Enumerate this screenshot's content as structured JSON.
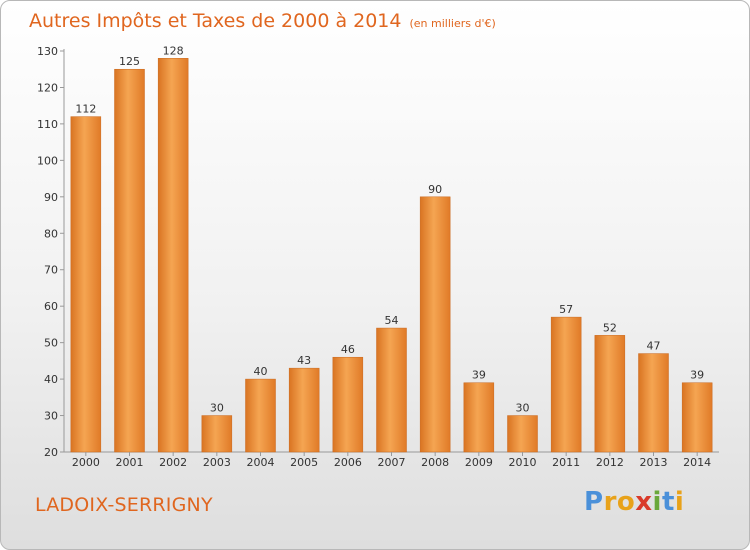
{
  "chart_data": {
    "type": "bar",
    "title": "Autres Impôts et Taxes de 2000 à 2014",
    "unit_note": "(en milliers d'€)",
    "categories": [
      "2000",
      "2001",
      "2002",
      "2003",
      "2004",
      "2005",
      "2006",
      "2007",
      "2008",
      "2009",
      "2010",
      "2011",
      "2012",
      "2013",
      "2014"
    ],
    "values": [
      112,
      125,
      128,
      30,
      40,
      43,
      46,
      54,
      90,
      39,
      30,
      57,
      52,
      47,
      39
    ],
    "ylim": [
      20,
      130
    ],
    "yticks": [
      20,
      30,
      40,
      50,
      60,
      70,
      80,
      90,
      100,
      110,
      120,
      130
    ],
    "grid": false,
    "bar_color": "#f29a40",
    "bar_color_dark": "#d97422"
  },
  "footer": {
    "commune": "LADOIX-SERRIGNY",
    "logo_letters": [
      "P",
      "r",
      "o",
      "x",
      "i",
      "t",
      "i"
    ],
    "logo_colors": [
      "#4a90d9",
      "#e8a21a",
      "#e8a21a",
      "#d93a2a",
      "#6aa83b",
      "#4a90d9",
      "#e8a21a"
    ]
  }
}
